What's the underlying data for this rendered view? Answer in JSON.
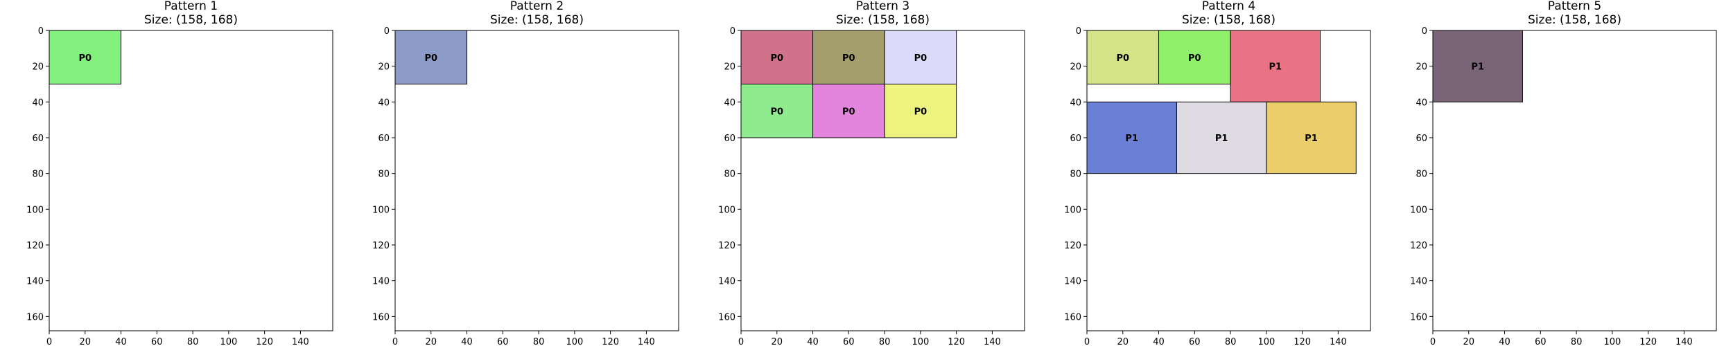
{
  "chart_data": [
    {
      "type": "rectangle-packing",
      "title": "Pattern 1",
      "subtitle": "Size: (158, 168)",
      "xlim": [
        0,
        158
      ],
      "ylim": [
        168,
        0
      ],
      "xticks": [
        0,
        20,
        40,
        60,
        80,
        100,
        120,
        140
      ],
      "yticks": [
        0,
        20,
        40,
        60,
        80,
        100,
        120,
        140,
        160
      ],
      "rects": [
        {
          "label": "P0",
          "x": 0,
          "y": 0,
          "w": 40,
          "h": 30,
          "color": "#82f07c"
        }
      ]
    },
    {
      "type": "rectangle-packing",
      "title": "Pattern 2",
      "subtitle": "Size: (158, 168)",
      "xlim": [
        0,
        158
      ],
      "ylim": [
        168,
        0
      ],
      "xticks": [
        0,
        20,
        40,
        60,
        80,
        100,
        120,
        140
      ],
      "yticks": [
        0,
        20,
        40,
        60,
        80,
        100,
        120,
        140,
        160
      ],
      "rects": [
        {
          "label": "P0",
          "x": 0,
          "y": 0,
          "w": 40,
          "h": 30,
          "color": "#8b9ac6"
        }
      ]
    },
    {
      "type": "rectangle-packing",
      "title": "Pattern 3",
      "subtitle": "Size: (158, 168)",
      "xlim": [
        0,
        158
      ],
      "ylim": [
        168,
        0
      ],
      "xticks": [
        0,
        20,
        40,
        60,
        80,
        100,
        120,
        140
      ],
      "yticks": [
        0,
        20,
        40,
        60,
        80,
        100,
        120,
        140,
        160
      ],
      "rects": [
        {
          "label": "P0",
          "x": 0,
          "y": 0,
          "w": 40,
          "h": 30,
          "color": "#d0728a"
        },
        {
          "label": "P0",
          "x": 40,
          "y": 0,
          "w": 40,
          "h": 30,
          "color": "#a49e6c"
        },
        {
          "label": "P0",
          "x": 80,
          "y": 0,
          "w": 40,
          "h": 30,
          "color": "#dcdaf9"
        },
        {
          "label": "P0",
          "x": 0,
          "y": 30,
          "w": 40,
          "h": 30,
          "color": "#8eec8e"
        },
        {
          "label": "P0",
          "x": 40,
          "y": 30,
          "w": 40,
          "h": 30,
          "color": "#e385dc"
        },
        {
          "label": "P0",
          "x": 80,
          "y": 30,
          "w": 40,
          "h": 30,
          "color": "#eef27f"
        }
      ]
    },
    {
      "type": "rectangle-packing",
      "title": "Pattern 4",
      "subtitle": "Size: (158, 168)",
      "xlim": [
        0,
        158
      ],
      "ylim": [
        168,
        0
      ],
      "xticks": [
        0,
        20,
        40,
        60,
        80,
        100,
        120,
        140
      ],
      "yticks": [
        0,
        20,
        40,
        60,
        80,
        100,
        120,
        140,
        160
      ],
      "rects": [
        {
          "label": "P0",
          "x": 0,
          "y": 0,
          "w": 40,
          "h": 30,
          "color": "#d4e388"
        },
        {
          "label": "P0",
          "x": 40,
          "y": 0,
          "w": 40,
          "h": 30,
          "color": "#90f06c"
        },
        {
          "label": "P1",
          "x": 80,
          "y": 0,
          "w": 50,
          "h": 40,
          "color": "#ea7386"
        },
        {
          "label": "P1",
          "x": 0,
          "y": 40,
          "w": 50,
          "h": 40,
          "color": "#6a80d6"
        },
        {
          "label": "P1",
          "x": 50,
          "y": 40,
          "w": 50,
          "h": 40,
          "color": "#dedbe2"
        },
        {
          "label": "P1",
          "x": 100,
          "y": 40,
          "w": 50,
          "h": 40,
          "color": "#ebce6c"
        }
      ]
    },
    {
      "type": "rectangle-packing",
      "title": "Pattern 5",
      "subtitle": "Size: (158, 168)",
      "xlim": [
        0,
        158
      ],
      "ylim": [
        168,
        0
      ],
      "xticks": [
        0,
        20,
        40,
        60,
        80,
        100,
        120,
        140
      ],
      "yticks": [
        0,
        20,
        40,
        60,
        80,
        100,
        120,
        140,
        160
      ],
      "rects": [
        {
          "label": "P1",
          "x": 0,
          "y": 0,
          "w": 50,
          "h": 40,
          "color": "#7a6478"
        }
      ]
    }
  ]
}
